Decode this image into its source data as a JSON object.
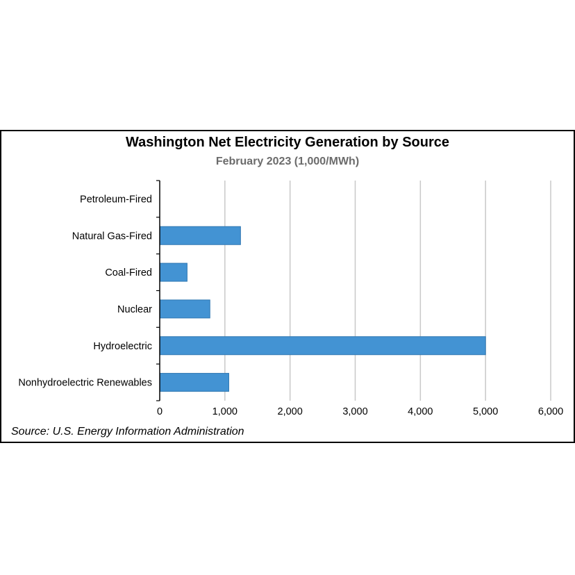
{
  "colors": {
    "bar": "#4393d3",
    "bar_stroke": "#2f77b2",
    "grid": "#c8c8c8",
    "axis": "#000000",
    "subtitle": "#6b6b6b"
  },
  "chart_data": {
    "type": "bar",
    "orientation": "horizontal",
    "title": "Washington Net Electricity Generation by Source",
    "subtitle": "February 2023 (1,000/MWh)",
    "categories": [
      "Petroleum-Fired",
      "Natural Gas-Fired",
      "Coal-Fired",
      "Nuclear",
      "Hydroelectric",
      "Nonhydroelectric Renewables"
    ],
    "values": [
      0,
      1240,
      420,
      770,
      5000,
      1060
    ],
    "xlim": [
      0,
      6000
    ],
    "xticks": [
      0,
      1000,
      2000,
      3000,
      4000,
      5000,
      6000
    ],
    "xtick_labels": [
      "0",
      "1,000",
      "2,000",
      "3,000",
      "4,000",
      "5,000",
      "6,000"
    ],
    "grid": true,
    "legend": "none",
    "source": "Source: U.S. Energy Information Administration"
  }
}
